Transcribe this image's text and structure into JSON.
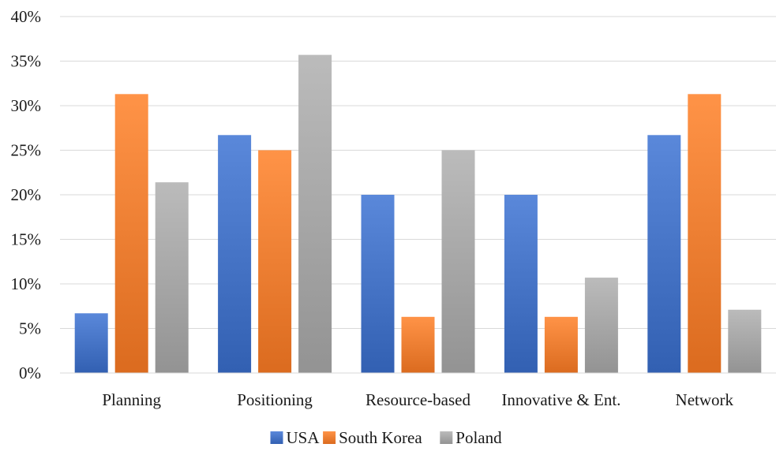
{
  "chart_data": {
    "type": "bar",
    "categories": [
      "Planning",
      "Positioning",
      "Resource-based",
      "Innovative & Ent.",
      "Network"
    ],
    "series": [
      {
        "name": "USA",
        "values": [
          6.7,
          26.7,
          20.0,
          20.0,
          26.7
        ],
        "color": "#4472C4"
      },
      {
        "name": "South Korea",
        "values": [
          31.3,
          25.0,
          6.3,
          6.3,
          31.3
        ],
        "color": "#ED7D31"
      },
      {
        "name": "Poland",
        "values": [
          21.4,
          35.7,
          25.0,
          10.7,
          7.1
        ],
        "color": "#A5A5A5"
      }
    ],
    "ylim": [
      0,
      40
    ],
    "ytick_step": 5,
    "ytick_suffix": "%",
    "grid": true,
    "legend_position": "bottom"
  }
}
